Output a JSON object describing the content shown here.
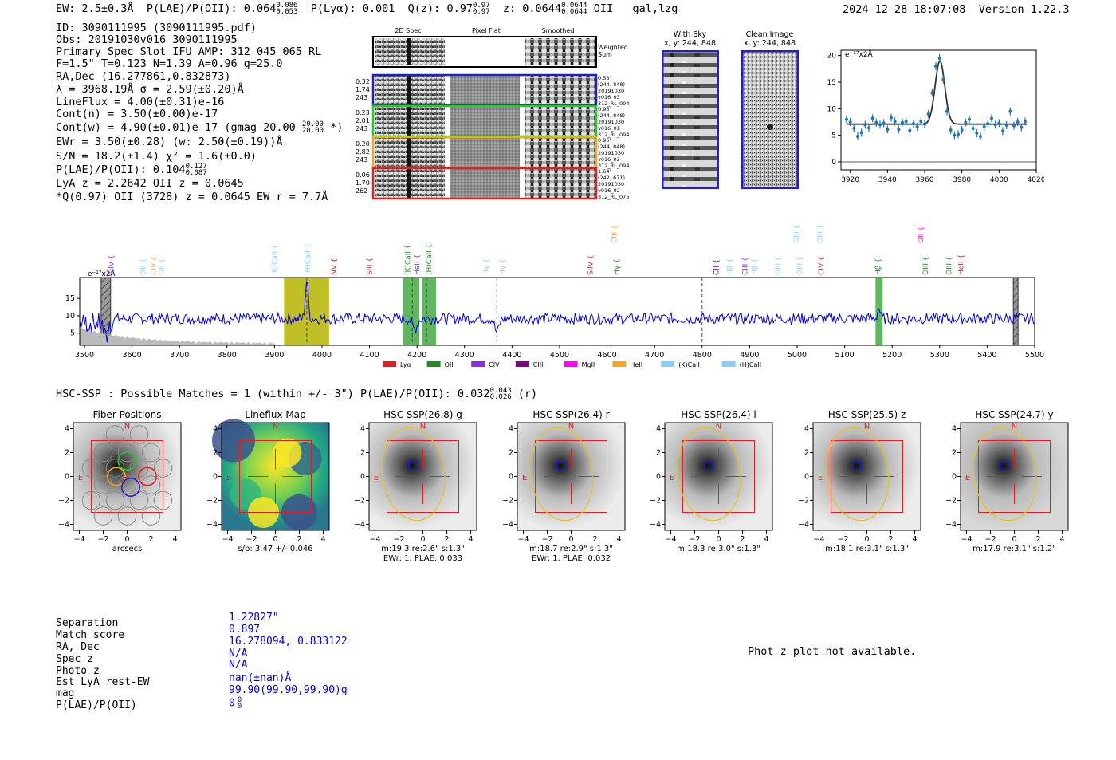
{
  "header": {
    "ew": "EW: 2.5±0.3Å",
    "plae_label": "P(LAE)/P(OII): 0.064",
    "plae_hi": "0.086",
    "plae_lo": "0.053",
    "plya": "P(Lyα): 0.001",
    "qz_label": "Q(z): 0.97",
    "qz_hi": "0.97",
    "qz_lo": "0.97",
    "z_label": "z: 0.0644",
    "z_hi": "0.0644",
    "z_lo": "0.0644",
    "z_line": "OII",
    "flags": "gal,lzg",
    "timestamp": "2024-12-28 18:07:08",
    "version": "Version 1.22.3"
  },
  "info": {
    "id": "ID: 3090111995 (3090111995.pdf)",
    "obs": "Obs: 20191030v016_3090111995",
    "primary": "Primary Spec_Slot_IFU_AMP: 312_045_065_RL",
    "fparams": "F=1.5\"  T=0.123  N=1.39  A=0.96  g=25.0",
    "radec": "RA,Dec (16.277861,0.832873)",
    "lambda": "λ = 3968.19Å  σ = 2.59(±0.20)Å",
    "lineflux": "LineFlux = 4.00(±0.31)e-16",
    "contn": "Cont(n) = 3.50(±0.00)e-17",
    "contw_label": "Cont(w) = 4.90(±0.01)e-17 (gmag 20.00",
    "contw_hi": "20.00",
    "contw_lo": "20.00",
    "contw_end": "*)",
    "ewr": "EWr = 3.50(±0.28) (w: 2.50(±0.19))Å",
    "sn": "S/N = 18.2(±1.4)  χ² = 1.6(±0.0)",
    "plae_label": "P(LAE)/P(OII): 0.104",
    "plae_hi": "0.127",
    "plae_lo": "0.087",
    "lya": "LyA z = 2.2642  OII z = 0.0645",
    "qline": "*Q(0.97) OII (3728) z = 0.0645  EW r = 7.7Å"
  },
  "cutouts": {
    "col_2d": "2D Spec",
    "col_flat": "Pixel Flat",
    "col_smooth": "Smoothed",
    "weighted": "Weighted",
    "sum": "Sum",
    "rows": [
      {
        "n1": "0.32",
        "n2": "1.74",
        "n3": "243",
        "info": [
          "0.58\"",
          "(244, 848)",
          "20191030",
          "v016_03",
          "312_RL_094"
        ],
        "color": "#1f1fcf"
      },
      {
        "n1": "0.23",
        "n2": "2.01",
        "n3": "243",
        "info": [
          "0.95\"",
          "(244, 848)",
          "20191030",
          "v016_01",
          "312_RL_094"
        ],
        "color": "#22cc22"
      },
      {
        "n1": "0.20",
        "n2": "2.82",
        "n3": "243",
        "info": [
          "0.95\"",
          "(244, 848)",
          "20191030",
          "v016_02",
          "312_RL_094"
        ],
        "color": "#f5a623"
      },
      {
        "n1": "0.06",
        "n2": "1.70",
        "n3": "262",
        "info": [
          "1.64\"",
          "(242, 671)",
          "20191030",
          "v016_02",
          "312_RL_075"
        ],
        "color": "#e02020"
      }
    ],
    "with_sky": "With Sky",
    "with_sky_xy": "x, y: 244, 848",
    "clean": "Clean Image",
    "clean_xy": "x, y: 244, 848"
  },
  "fit_chart": {
    "type": "scatter",
    "unit_label": "e⁻¹⁷x2Å",
    "xlim": [
      3915,
      4020
    ],
    "ylim": [
      -1.5,
      21
    ],
    "xticks": [
      "3920",
      "3940",
      "3960",
      "3980",
      "4000",
      "4020"
    ],
    "yticks": [
      "0",
      "5",
      "10",
      "15",
      "20"
    ],
    "x": [
      3918,
      3920,
      3922,
      3924,
      3926,
      3928,
      3930,
      3932,
      3934,
      3936,
      3938,
      3940,
      3942,
      3944,
      3946,
      3948,
      3950,
      3952,
      3954,
      3956,
      3958,
      3960,
      3962,
      3964,
      3966,
      3968,
      3970,
      3972,
      3974,
      3976,
      3978,
      3980,
      3982,
      3984,
      3986,
      3988,
      3990,
      3992,
      3994,
      3996,
      3998,
      4000,
      4002,
      4004,
      4006,
      4008,
      4010,
      4012,
      4014
    ],
    "y": [
      8.0,
      7.5,
      6.3,
      4.8,
      5.5,
      7.0,
      6.4,
      8.2,
      7.4,
      7.0,
      7.3,
      6.1,
      8.3,
      7.6,
      6.1,
      7.4,
      7.6,
      5.9,
      7.2,
      6.6,
      7.6,
      7.1,
      9.0,
      13.0,
      18.0,
      19.5,
      15.5,
      9.5,
      6.0,
      5.0,
      5.2,
      6.0,
      7.4,
      8.0,
      6.3,
      5.4,
      4.8,
      6.6,
      7.2,
      8.2,
      7.0,
      7.3,
      5.8,
      6.9,
      9.5,
      6.8,
      7.5,
      6.5,
      7.6
    ],
    "fit_baseline": 7.1,
    "fit_peak": 19.0,
    "fit_center": 3968.2,
    "fit_sigma": 2.59
  },
  "spectrum_chart": {
    "type": "line",
    "unit_label": "e⁻¹⁷x2Å",
    "xlim": [
      3490,
      5500
    ],
    "ylim": [
      1.5,
      21
    ],
    "xticks": [
      "3500",
      "3600",
      "3700",
      "3800",
      "3900",
      "4000",
      "4100",
      "4200",
      "4300",
      "4400",
      "4500",
      "4600",
      "4700",
      "4800",
      "4900",
      "5000",
      "5100",
      "5200",
      "5300",
      "5400",
      "5500"
    ],
    "yticks": [
      "5",
      "10",
      "15"
    ],
    "dashed_lines": [
      3968,
      4190,
      4220,
      4368,
      4800
    ],
    "bands": [
      {
        "x0": 3920,
        "x1": 4015,
        "color": "#b5b500"
      },
      {
        "x0": 4170,
        "x1": 4205,
        "color": "#44aa44"
      },
      {
        "x0": 4210,
        "x1": 4240,
        "color": "#44aa44"
      },
      {
        "x0": 5165,
        "x1": 5180,
        "color": "#44aa44"
      }
    ],
    "hatched": [
      {
        "x0": 3535,
        "x1": 3555
      },
      {
        "x0": 5455,
        "x1": 5465
      }
    ],
    "line_labels": [
      {
        "t": "SiIV",
        "x": 3556,
        "row": 0,
        "c": "#8a2be2"
      },
      {
        "t": "OII",
        "x": 3623,
        "row": 0,
        "c": "#87cefa"
      },
      {
        "t": "CIV",
        "x": 3645,
        "row": 0,
        "c": "#f5a623"
      },
      {
        "t": "OII",
        "x": 3662,
        "row": 0,
        "c": "#87cefa"
      },
      {
        "t": "(K)CaII",
        "x": 3900,
        "row": 0,
        "c": "#87cefa"
      },
      {
        "t": "(H)CaII",
        "x": 3970,
        "row": 0,
        "c": "#87cefa"
      },
      {
        "t": "NV",
        "x": 4025,
        "row": 0,
        "c": "#e02020"
      },
      {
        "t": "SiII",
        "x": 4100,
        "row": 0,
        "c": "#e02020"
      },
      {
        "t": "(K)CaII",
        "x": 4180,
        "row": 0,
        "c": "#228b22"
      },
      {
        "t": "HeII",
        "x": 4200,
        "row": 0,
        "c": "#8a2be2"
      },
      {
        "t": "(H)CaII",
        "x": 4225,
        "row": 0,
        "c": "#228b22"
      },
      {
        "t": "Hγ",
        "x": 4345,
        "row": 0,
        "c": "#87cefa"
      },
      {
        "t": "Hγ",
        "x": 4380,
        "row": 0,
        "c": "#87cefa"
      },
      {
        "t": "SiIV",
        "x": 4565,
        "row": 0,
        "c": "#e02020"
      },
      {
        "t": "Hγ",
        "x": 4620,
        "row": 0,
        "c": "#228b22"
      },
      {
        "t": "CIII",
        "x": 4615,
        "row": 1,
        "c": "#f5a623"
      },
      {
        "t": "CII",
        "x": 4830,
        "row": 0,
        "c": "#800080"
      },
      {
        "t": "Hβ",
        "x": 4858,
        "row": 0,
        "c": "#87cefa"
      },
      {
        "t": "CIII",
        "x": 4890,
        "row": 0,
        "c": "#8a2be2"
      },
      {
        "t": "Hβ",
        "x": 4910,
        "row": 0,
        "c": "#87cefa"
      },
      {
        "t": "OIII",
        "x": 4960,
        "row": 0,
        "c": "#87cefa"
      },
      {
        "t": "OIII",
        "x": 5005,
        "row": 0,
        "c": "#87cefa"
      },
      {
        "t": "OIII",
        "x": 4998,
        "row": 1,
        "c": "#87cefa"
      },
      {
        "t": "OIII",
        "x": 5048,
        "row": 1,
        "c": "#87cefa"
      },
      {
        "t": "CIV",
        "x": 5050,
        "row": 0,
        "c": "#e02020"
      },
      {
        "t": "Hβ",
        "x": 5170,
        "row": 0,
        "c": "#228b22"
      },
      {
        "t": "OIII",
        "x": 5270,
        "row": 0,
        "c": "#228b22"
      },
      {
        "t": "OII",
        "x": 5260,
        "row": 1,
        "c": "#ff00ff"
      },
      {
        "t": "OIII",
        "x": 5320,
        "row": 0,
        "c": "#228b22"
      },
      {
        "t": "HeII",
        "x": 5345,
        "row": 0,
        "c": "#e02020"
      }
    ],
    "legend": [
      {
        "label": "Lyα",
        "color": "#e02020"
      },
      {
        "label": "OII",
        "color": "#228b22"
      },
      {
        "label": "CIV",
        "color": "#8a2be2"
      },
      {
        "label": "CIII",
        "color": "#800080"
      },
      {
        "label": "MgII",
        "color": "#ff00ff"
      },
      {
        "label": "HeII",
        "color": "#f5a623"
      },
      {
        "label": "(K)CaII",
        "color": "#87cefa"
      },
      {
        "label": "(H)CaII",
        "color": "#87cefa"
      }
    ]
  },
  "hsc": {
    "title_label": "HSC-SSP : Possible Matches = 1 (within +/- 3\")  P(LAE)/P(OII): 0.032",
    "title_hi": "0.043",
    "title_lo": "0.026",
    "title_end": "(r)",
    "panels": [
      {
        "title": "Fiber Positions",
        "kind": "fiber",
        "xl1": "arcsecs",
        "xl2": ""
      },
      {
        "title": "Lineflux Map",
        "kind": "lineflux",
        "xl1": "s/b: 3.47 +/- 0.046",
        "xl2": ""
      },
      {
        "title": "HSC SSP(26.8) g",
        "kind": "hsc",
        "xl1": "m:19.3  re:2.6\"  s:1.3\"",
        "xl2": "EWr: 1. PLAE: 0.033"
      },
      {
        "title": "HSC SSP(26.4) r",
        "kind": "hsc",
        "xl1": "m:18.7  re:2.9\"  s:1.3\"",
        "xl2": "EWr: 1. PLAE: 0.032"
      },
      {
        "title": "HSC SSP(26.4) i",
        "kind": "hsc",
        "xl1": "m:18.3  re:3.0\"  s:1.3\"",
        "xl2": ""
      },
      {
        "title": "HSC SSP(25.5) z",
        "kind": "hsc",
        "xl1": "m:18.1  re:3.1\"  s:1.3\"",
        "xl2": ""
      },
      {
        "title": "HSC SSP(24.7) y",
        "kind": "hsc",
        "xl1": "m:17.9  re:3.1\"  s:1.2\"",
        "xl2": ""
      }
    ],
    "ticks": [
      "−4",
      "−2",
      "0",
      "2",
      "4"
    ],
    "north": "N",
    "east": "E"
  },
  "match": {
    "labels": [
      "Separation",
      "Match score",
      "RA, Dec",
      "Spec z",
      "Photo z",
      "Est LyA rest-EW",
      "mag",
      "P(LAE)/P(OII)"
    ],
    "values": [
      "1.22827\"",
      "0.897",
      "16.278094, 0.833122",
      "N/A",
      "N/A",
      "nan(±nan)Å",
      "99.90(99.90,99.90)g",
      "0"
    ],
    "plae_hi": "0",
    "plae_lo": "0"
  },
  "photz_msg": "Phot z plot not available."
}
